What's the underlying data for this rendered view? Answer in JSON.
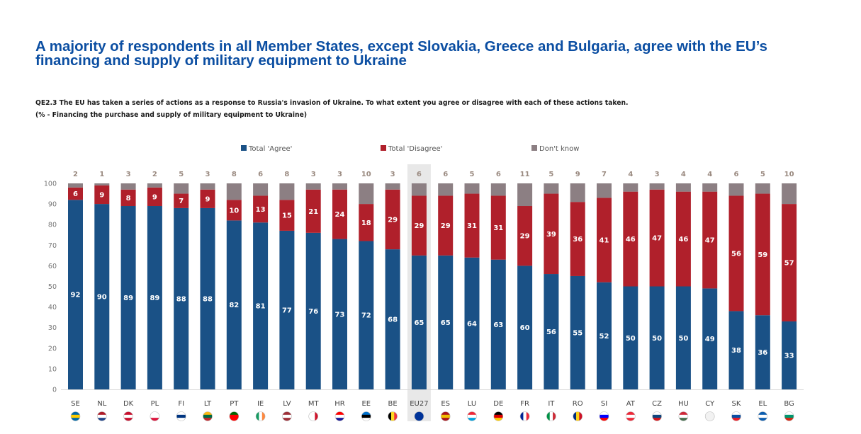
{
  "headline": "A majority of respondents in all Member States, except Slovakia, Greece and Bulgaria, agree with the EU’s financing and supply of military equipment to Ukraine",
  "question": {
    "line1": "QE2.3  The EU has taken a series of actions as a response to Russia's invasion of Ukraine. To what extent you agree or disagree with each of these actions taken.",
    "line2": "(% - Financing the purchase and supply of military equipment to Ukraine)"
  },
  "colors": {
    "agree": "#1a5186",
    "disagree": "#b0202b",
    "dont_know": "#8c7f83",
    "highlight": "#e8e8e8",
    "headline": "#0b4ea2"
  },
  "chart_data": {
    "type": "bar",
    "stacked": true,
    "title": "QE2.3 Financing the purchase and supply of military equipment to Ukraine",
    "xlabel": "",
    "ylabel": "%",
    "ylim": [
      0,
      100
    ],
    "yticks": [
      0,
      10,
      20,
      30,
      40,
      50,
      60,
      70,
      80,
      90,
      100
    ],
    "grid": false,
    "legend_position": "top",
    "highlight_category": "EU27",
    "categories": [
      "SE",
      "NL",
      "DK",
      "PL",
      "FI",
      "LT",
      "PT",
      "IE",
      "LV",
      "MT",
      "HR",
      "EE",
      "BE",
      "EU27",
      "ES",
      "LU",
      "DE",
      "FR",
      "IT",
      "RO",
      "SI",
      "AT",
      "CZ",
      "HU",
      "CY",
      "SK",
      "EL",
      "BG"
    ],
    "series": [
      {
        "name": "Total 'Agree'",
        "values": [
          92,
          90,
          89,
          89,
          88,
          88,
          82,
          81,
          77,
          76,
          73,
          72,
          68,
          65,
          65,
          64,
          63,
          60,
          56,
          55,
          52,
          50,
          50,
          50,
          49,
          38,
          36,
          33
        ]
      },
      {
        "name": "Total 'Disagree'",
        "values": [
          6,
          9,
          8,
          9,
          7,
          9,
          10,
          13,
          15,
          21,
          24,
          18,
          29,
          29,
          29,
          31,
          31,
          29,
          39,
          36,
          41,
          46,
          47,
          46,
          47,
          56,
          59,
          57
        ]
      },
      {
        "name": "Don't know",
        "values": [
          2,
          1,
          3,
          2,
          5,
          3,
          8,
          6,
          8,
          3,
          3,
          10,
          3,
          6,
          6,
          5,
          6,
          11,
          5,
          9,
          7,
          4,
          3,
          4,
          4,
          6,
          5,
          10
        ]
      }
    ],
    "flags": [
      "SE",
      "NL",
      "DK",
      "PL",
      "FI",
      "LT",
      "PT",
      "IE",
      "LV",
      "MT",
      "HR",
      "EE",
      "BE",
      "EU",
      "ES",
      "LU",
      "DE",
      "FR",
      "IT",
      "RO",
      "SI",
      "AT",
      "CZ",
      "HU",
      "CY",
      "SK",
      "EL",
      "BG"
    ]
  }
}
